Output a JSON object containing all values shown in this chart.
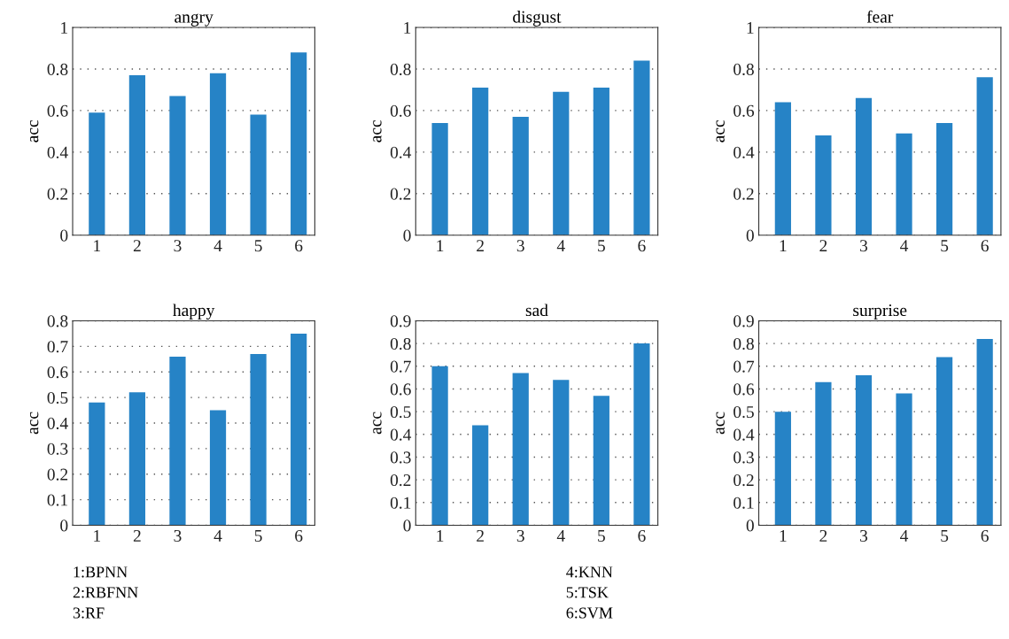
{
  "chart_data": [
    {
      "type": "bar",
      "title": "angry",
      "ylabel": "acc",
      "categories": [
        "1",
        "2",
        "3",
        "4",
        "5",
        "6"
      ],
      "values": [
        0.59,
        0.77,
        0.67,
        0.78,
        0.58,
        0.88
      ],
      "color": "#2683c6",
      "ylim": [
        0,
        1
      ],
      "yticks": [
        0,
        0.2,
        0.4,
        0.6,
        0.8,
        1
      ],
      "grid": "y"
    },
    {
      "type": "bar",
      "title": "disgust",
      "ylabel": "acc",
      "categories": [
        "1",
        "2",
        "3",
        "4",
        "5",
        "6"
      ],
      "values": [
        0.54,
        0.71,
        0.57,
        0.69,
        0.71,
        0.84
      ],
      "color": "#2683c6",
      "ylim": [
        0,
        1
      ],
      "yticks": [
        0,
        0.2,
        0.4,
        0.6,
        0.8,
        1
      ],
      "grid": "y"
    },
    {
      "type": "bar",
      "title": "fear",
      "ylabel": "acc",
      "categories": [
        "1",
        "2",
        "3",
        "4",
        "5",
        "6"
      ],
      "values": [
        0.64,
        0.48,
        0.66,
        0.49,
        0.54,
        0.76
      ],
      "color": "#2683c6",
      "ylim": [
        0,
        1
      ],
      "yticks": [
        0,
        0.2,
        0.4,
        0.6,
        0.8,
        1
      ],
      "grid": "y"
    },
    {
      "type": "bar",
      "title": "happy",
      "ylabel": "acc",
      "categories": [
        "1",
        "2",
        "3",
        "4",
        "5",
        "6"
      ],
      "values": [
        0.48,
        0.52,
        0.66,
        0.45,
        0.67,
        0.75
      ],
      "color": "#2683c6",
      "ylim": [
        0,
        0.8
      ],
      "yticks": [
        0,
        0.1,
        0.2,
        0.3,
        0.4,
        0.5,
        0.6,
        0.7,
        0.8
      ],
      "grid": "y",
      "annotations": [
        "1:BPNN",
        "2:RBFNN",
        "3:RF"
      ]
    },
    {
      "type": "bar",
      "title": "sad",
      "ylabel": "acc",
      "categories": [
        "1",
        "2",
        "3",
        "4",
        "5",
        "6"
      ],
      "values": [
        0.7,
        0.44,
        0.67,
        0.64,
        0.57,
        0.8
      ],
      "color": "#2683c6",
      "ylim": [
        0,
        0.9
      ],
      "yticks": [
        0,
        0.1,
        0.2,
        0.3,
        0.4,
        0.5,
        0.6,
        0.7,
        0.8,
        0.9
      ],
      "grid": "y",
      "annotations": [
        "4:KNN",
        "5:TSK",
        "6:SVM"
      ]
    },
    {
      "type": "bar",
      "title": "surprise",
      "ylabel": "acc",
      "categories": [
        "1",
        "2",
        "3",
        "4",
        "5",
        "6"
      ],
      "values": [
        0.5,
        0.63,
        0.66,
        0.58,
        0.74,
        0.82
      ],
      "color": "#2683c6",
      "ylim": [
        0,
        0.9
      ],
      "yticks": [
        0,
        0.1,
        0.2,
        0.3,
        0.4,
        0.5,
        0.6,
        0.7,
        0.8,
        0.9
      ],
      "grid": "y"
    }
  ]
}
